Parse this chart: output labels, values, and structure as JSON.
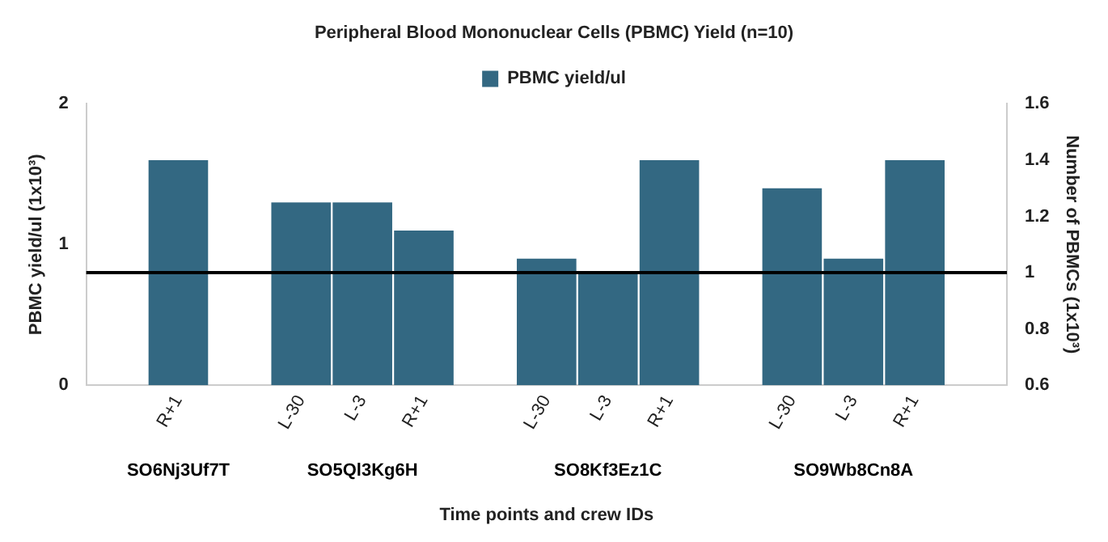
{
  "chart_data": {
    "type": "bar",
    "title": "Peripheral Blood Mononuclear Cells (PBMC) Yield (n=10)",
    "xlabel": "Time points and crew IDs",
    "ylabel": "PBMC yield/ul (1x10³)",
    "y2label": "Number of PBMCs (1x10³)",
    "categories": [
      null,
      "R+1",
      null,
      "L-30",
      "L-3",
      "R+1",
      null,
      "L-30",
      "L-3",
      "R+1",
      null,
      "L-30",
      "L-3",
      "R+1",
      null
    ],
    "series": [
      {
        "name": "PBMC yield/ul",
        "color": "#336882",
        "values": [
          null,
          1.6,
          null,
          1.3,
          1.3,
          1.1,
          null,
          0.9,
          0.8,
          1.6,
          null,
          1.4,
          0.9,
          1.6,
          null
        ]
      }
    ],
    "ylim": [
      0,
      2
    ],
    "yticks": [
      0,
      1,
      2
    ],
    "y2lim": [
      0.6,
      1.6
    ],
    "y2ticks": [
      0.6,
      0.8,
      1,
      1.2,
      1.4,
      1.6
    ],
    "ref_lines": [
      {
        "axis": "y2",
        "value": 1,
        "color": "#000000"
      }
    ],
    "annotations": [
      "SO6Nj3Uf7T",
      "SO5Ql3Kg6H",
      "SO8Kf3Ez1C",
      "SO9Wb8Cn8A"
    ],
    "legend": "top",
    "grid": false
  }
}
